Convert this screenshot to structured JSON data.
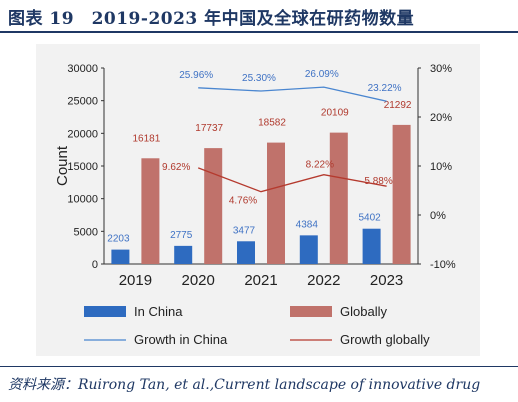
{
  "figure": {
    "title": "图表 19　2019-2023 年中国及全球在研药物数量",
    "source": "资料来源：Ruirong Tan, et al.,Current landscape of innovative drug"
  },
  "colors": {
    "china": "#2e6bc0",
    "global": "#c0726b",
    "china_line": "#4a86d0",
    "global_line": "#b53a2e",
    "china_label": "#3f72c4",
    "global_label": "#b03a2e",
    "heading": "#1f3864"
  },
  "chart_data": {
    "type": "bar",
    "categories": [
      "2019",
      "2020",
      "2021",
      "2022",
      "2023"
    ],
    "series": [
      {
        "name": "In China",
        "kind": "bar",
        "axis": "left",
        "values": [
          2203,
          2775,
          3477,
          4384,
          5402
        ],
        "labels": [
          "2203",
          "2775",
          "3477",
          "4384",
          "5402"
        ]
      },
      {
        "name": "Globally",
        "kind": "bar",
        "axis": "left",
        "values": [
          16181,
          17737,
          18582,
          20109,
          21292
        ],
        "labels": [
          "16181",
          "17737",
          "18582",
          "20109",
          "21292"
        ]
      },
      {
        "name": "Growth in China",
        "kind": "line",
        "axis": "right",
        "values": [
          null,
          25.96,
          25.3,
          26.09,
          23.22
        ],
        "labels": [
          "",
          "25.96%",
          "25.30%",
          "26.09%",
          "23.22%"
        ]
      },
      {
        "name": "Growth globally",
        "kind": "line",
        "axis": "right",
        "values": [
          null,
          9.62,
          4.76,
          8.22,
          5.88
        ],
        "labels": [
          "",
          "9.62%",
          "4.76%",
          "8.22%",
          "5.88%"
        ]
      }
    ],
    "ylabel": "Count",
    "ylim": [
      0,
      30000
    ],
    "yticks": [
      "0",
      "5000",
      "10000",
      "15000",
      "20000",
      "25000",
      "30000"
    ],
    "y2lim": [
      -10,
      30
    ],
    "y2ticks": [
      "-10%",
      "0%",
      "10%",
      "20%",
      "30%"
    ],
    "legend_position": "bottom"
  }
}
